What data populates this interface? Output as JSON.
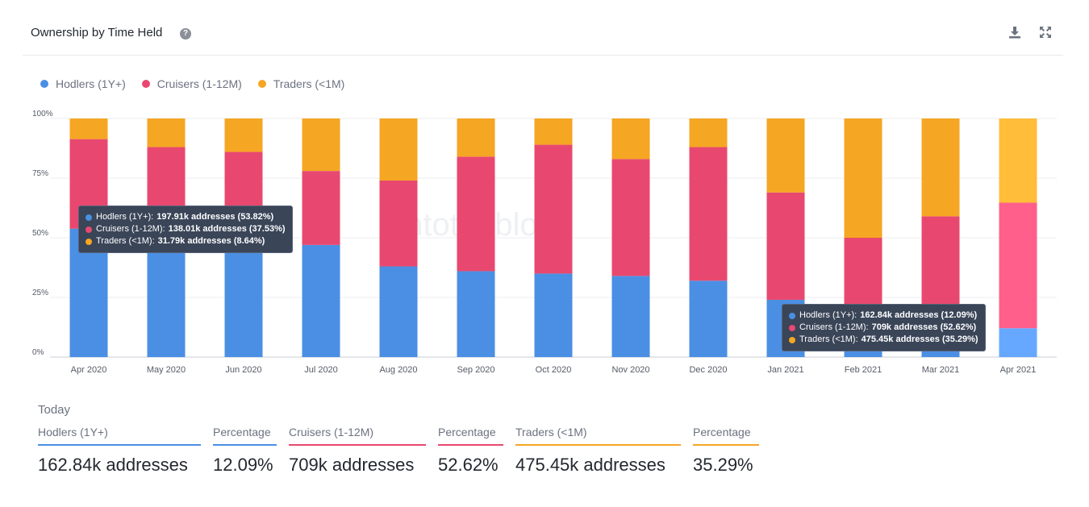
{
  "header": {
    "title": "Ownership by Time Held",
    "help_glyph": "?"
  },
  "colors": {
    "hodlers": "#4a8fe3",
    "cruisers": "#e8486f",
    "traders": "#f5a623",
    "grid": "#eceef1",
    "axis_text": "#555b66"
  },
  "chart_data": {
    "type": "bar",
    "stacked": true,
    "categories": [
      "Apr 2020",
      "May 2020",
      "Jun 2020",
      "Jul 2020",
      "Aug 2020",
      "Sep 2020",
      "Oct 2020",
      "Nov 2020",
      "Dec 2020",
      "Jan 2021",
      "Feb 2021",
      "Mar 2021",
      "Apr 2021"
    ],
    "series": [
      {
        "key": "hodlers",
        "name": "Hodlers (1Y+)",
        "values": [
          53.82,
          53,
          52,
          47,
          38,
          36,
          35,
          34,
          32,
          24,
          18,
          14,
          12.09
        ]
      },
      {
        "key": "cruisers",
        "name": "Cruisers (1-12M)",
        "values": [
          37.53,
          35,
          34,
          31,
          36,
          48,
          54,
          49,
          56,
          45,
          32,
          45,
          52.62
        ]
      },
      {
        "key": "traders",
        "name": "Traders (<1M)",
        "values": [
          8.64,
          12,
          14,
          22,
          26,
          16,
          11,
          17,
          12,
          31,
          50,
          41,
          35.29
        ]
      }
    ],
    "yticks": [
      "0%",
      "25%",
      "50%",
      "75%",
      "100%"
    ],
    "ylim": [
      0,
      100
    ],
    "title": "Ownership by Time Held",
    "legend_position": "top-left",
    "grid": true
  },
  "watermark": "intotheblock",
  "tooltips": [
    {
      "rows": [
        {
          "label": "Hodlers (1Y+):",
          "value": "197.91k addresses (53.82%)"
        },
        {
          "label": "Cruisers (1-12M):",
          "value": "138.01k addresses (37.53%)"
        },
        {
          "label": "Traders (<1M):",
          "value": "31.79k addresses (8.64%)"
        }
      ]
    },
    {
      "rows": [
        {
          "label": "Hodlers (1Y+):",
          "value": "162.84k addresses (12.09%)"
        },
        {
          "label": "Cruisers (1-12M):",
          "value": "709k addresses (52.62%)"
        },
        {
          "label": "Traders (<1M):",
          "value": "475.45k addresses (35.29%)"
        }
      ]
    }
  ],
  "today": {
    "label": "Today",
    "stats": [
      {
        "label": "Hodlers (1Y+)",
        "value": "162.84k addresses"
      },
      {
        "label": "Percentage",
        "value": "12.09%"
      },
      {
        "label": "Cruisers (1-12M)",
        "value": "709k addresses"
      },
      {
        "label": "Percentage",
        "value": "52.62%"
      },
      {
        "label": "Traders (<1M)",
        "value": "475.45k addresses"
      },
      {
        "label": "Percentage",
        "value": "35.29%"
      }
    ]
  }
}
